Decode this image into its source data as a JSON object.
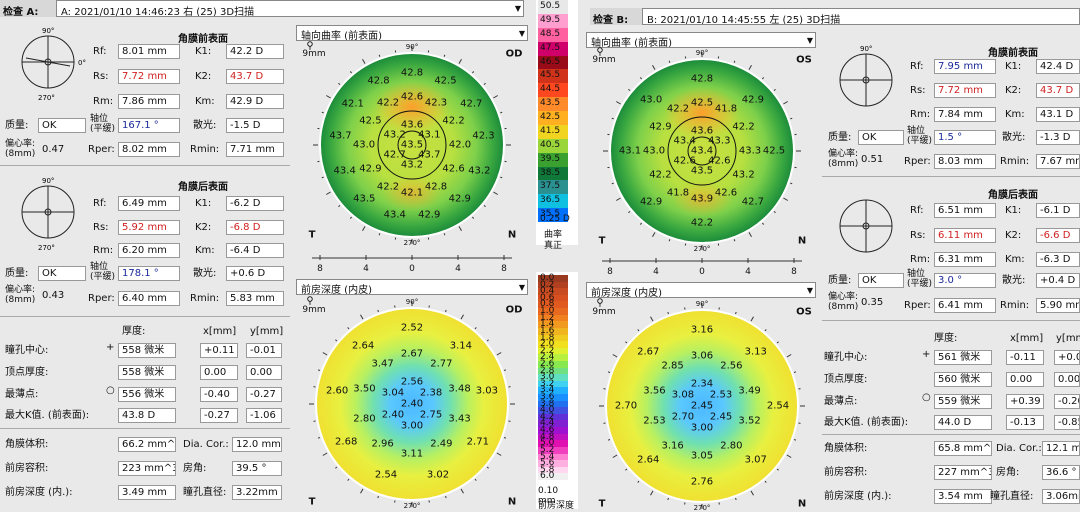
{
  "left": {
    "exam_label": "检查 A:",
    "exam_value": "A: 2021/01/10  14:46:23  右   (25) 3D扫描",
    "front": {
      "title": "角膜前表面",
      "rf": "8.01 mm",
      "rs": "7.72 mm",
      "rm": "7.86 mm",
      "k1": "42.2 D",
      "k2": "43.7 D",
      "km": "42.9 D",
      "quality": "OK",
      "axis": "167.1 °",
      "astig": "-1.5 D",
      "ecc": "0.47",
      "rper": "8.02 mm",
      "rmin": "7.71 mm"
    },
    "back": {
      "title": "角膜后表面",
      "rf": "6.49 mm",
      "rs": "5.92 mm",
      "rm": "6.20 mm",
      "k1": "-6.2 D",
      "k2": "-6.8 D",
      "km": "-6.4 D",
      "quality": "OK",
      "axis": "178.1 °",
      "astig": "+0.6 D",
      "ecc": "0.43",
      "rper": "6.40 mm",
      "rmin": "5.83 mm"
    },
    "pupil": {
      "thickness": "558 微米",
      "x": "+0.11",
      "y": "-0.01"
    },
    "apex": {
      "thickness": "558 微米",
      "x": "0.00",
      "y": "0.00"
    },
    "thinnest": {
      "thickness": "556 微米",
      "x": "-0.40",
      "y": "-0.27"
    },
    "kmax": {
      "value": "43.8 D",
      "x": "-0.27",
      "y": "-1.06"
    },
    "volume": "66.2 mm^3",
    "dia_cor": "12.0 mm",
    "chamber_vol": "223 mm^3",
    "angle": "39.5 °",
    "depth": "3.49 mm",
    "pupil_dia": "3.22mm",
    "map1_dropdown": "轴向曲率 (前表面)",
    "map2_dropdown": "前房深度 (内皮)",
    "eye": "OD",
    "map1_values": [
      {
        "t": "43.5"
      },
      {
        "t": "43.6"
      },
      {
        "t": "43.1"
      },
      {
        "t": "43.7"
      },
      {
        "t": "43.2"
      },
      {
        "t": "42.7"
      },
      {
        "t": "43.2"
      },
      {
        "t": "42.6"
      },
      {
        "t": "42.3"
      },
      {
        "t": "42.2"
      },
      {
        "t": "42.0"
      },
      {
        "t": "42.6"
      },
      {
        "t": "42.8"
      },
      {
        "t": "42.1"
      },
      {
        "t": "42.2"
      },
      {
        "t": "42.9"
      },
      {
        "t": "43.0"
      },
      {
        "t": "42.5"
      },
      {
        "t": "42.2"
      },
      {
        "t": "42.8"
      },
      {
        "t": "42.5"
      },
      {
        "t": "42.7"
      },
      {
        "t": "42.3"
      },
      {
        "t": "43.2"
      },
      {
        "t": "42.9"
      },
      {
        "t": "42.9"
      },
      {
        "t": "43.4"
      },
      {
        "t": "43.5"
      },
      {
        "t": "43.4"
      },
      {
        "t": "43.7"
      },
      {
        "t": "42.1"
      },
      {
        "t": "42.8"
      }
    ],
    "map2_values": [
      {
        "t": "2.40"
      },
      {
        "t": "2.56"
      },
      {
        "t": "2.38"
      },
      {
        "t": "2.75"
      },
      {
        "t": "3.00"
      },
      {
        "t": "2.40"
      },
      {
        "t": "3.04"
      },
      {
        "t": "2.67"
      },
      {
        "t": "2.77"
      },
      {
        "t": "3.48"
      },
      {
        "t": "3.43"
      },
      {
        "t": "2.49"
      },
      {
        "t": "3.11"
      },
      {
        "t": "2.96"
      },
      {
        "t": "2.80"
      },
      {
        "t": "3.50"
      },
      {
        "t": "3.47"
      },
      {
        "t": "2.52"
      },
      {
        "t": "3.14"
      },
      {
        "t": "3.03"
      },
      {
        "t": "2.71"
      },
      {
        "t": "3.02"
      },
      {
        "t": "2.54"
      },
      {
        "t": "2.68"
      },
      {
        "t": "2.60"
      },
      {
        "t": "2.64"
      }
    ]
  },
  "right": {
    "exam_label": "检查 B:",
    "exam_value": "B: 2021/01/10  14:45:55  左   (25) 3D扫描",
    "front": {
      "title": "角膜前表面",
      "rf": "7.95 mm",
      "rs": "7.72 mm",
      "rm": "7.84 mm",
      "k1": "42.4 D",
      "k2": "43.7 D",
      "km": "43.1 D",
      "quality": "OK",
      "axis": "1.5 °",
      "astig": "-1.3 D",
      "ecc": "0.51",
      "rper": "8.03 mm",
      "rmin": "7.67 mm"
    },
    "back": {
      "title": "角膜后表面",
      "rf": "6.51 mm",
      "rs": "6.11 mm",
      "rm": "6.31 mm",
      "k1": "-6.1 D",
      "k2": "-6.6 D",
      "km": "-6.3 D",
      "quality": "OK",
      "axis": "3.0 °",
      "astig": "+0.4 D",
      "ecc": "0.35",
      "rper": "6.41 mm",
      "rmin": "5.90 mm"
    },
    "pupil": {
      "thickness": "561 微米",
      "x": "-0.11",
      "y": "+0.09"
    },
    "apex": {
      "thickness": "560 微米",
      "x": "0.00",
      "y": "0.00"
    },
    "thinnest": {
      "thickness": "559 微米",
      "x": "+0.39",
      "y": "-0.20"
    },
    "kmax": {
      "value": "44.0 D",
      "x": "-0.13",
      "y": "-0.85"
    },
    "volume": "65.8 mm^3",
    "dia_cor": "12.1 mm",
    "chamber_vol": "227 mm^3",
    "angle": "36.6 °",
    "depth": "3.54 mm",
    "pupil_dia": "3.06mm",
    "map1_dropdown": "轴向曲率 (前表面)",
    "map2_dropdown": "前房深度 (内皮)",
    "eye": "OS",
    "map1_values": [
      {
        "t": "43.4"
      },
      {
        "t": "43.6"
      },
      {
        "t": "43.3"
      },
      {
        "t": "42.6"
      },
      {
        "t": "43.5"
      },
      {
        "t": "42.6"
      },
      {
        "t": "43.4"
      },
      {
        "t": "42.5"
      },
      {
        "t": "41.8"
      },
      {
        "t": "42.2"
      },
      {
        "t": "43.3"
      },
      {
        "t": "43.2"
      },
      {
        "t": "42.6"
      },
      {
        "t": "43.9"
      },
      {
        "t": "41.8"
      },
      {
        "t": "42.2"
      },
      {
        "t": "43.0"
      },
      {
        "t": "42.9"
      },
      {
        "t": "42.2"
      },
      {
        "t": "42.8"
      },
      {
        "t": "42.9"
      },
      {
        "t": "42.5"
      },
      {
        "t": "42.7"
      },
      {
        "t": "42.2"
      },
      {
        "t": "42.9"
      },
      {
        "t": "43.1"
      },
      {
        "t": "43.0"
      }
    ],
    "map2_values": [
      {
        "t": "2.45"
      },
      {
        "t": "2.34"
      },
      {
        "t": "2.53"
      },
      {
        "t": "2.45"
      },
      {
        "t": "3.00"
      },
      {
        "t": "2.70"
      },
      {
        "t": "3.08"
      },
      {
        "t": "3.06"
      },
      {
        "t": "2.56"
      },
      {
        "t": "3.49"
      },
      {
        "t": "3.52"
      },
      {
        "t": "2.80"
      },
      {
        "t": "3.05"
      },
      {
        "t": "3.16"
      },
      {
        "t": "2.53"
      },
      {
        "t": "3.56"
      },
      {
        "t": "2.85"
      },
      {
        "t": "3.16"
      },
      {
        "t": "3.13"
      },
      {
        "t": "2.54"
      },
      {
        "t": "3.07"
      },
      {
        "t": "2.76"
      },
      {
        "t": "2.64"
      },
      {
        "t": "2.70"
      },
      {
        "t": "2.67"
      }
    ]
  },
  "labels": {
    "rf": "Rf:",
    "rs": "Rs:",
    "rm": "Rm:",
    "k1": "K1:",
    "k2": "K2:",
    "km": "Km:",
    "quality": "质量:",
    "axis": "轴位\n(平缓)",
    "astig": "散光:",
    "ecc": "偏心率:\n(8mm)",
    "rper": "Rper:",
    "rmin": "Rmin:",
    "thickness_hdr": "厚度:",
    "x_hdr": "x[mm]",
    "y_hdr": "y[mm]",
    "pupil_center": "瞳孔中心:",
    "apex_thick": "顶点厚度:",
    "thinnest": "最薄点:",
    "kmax": "最大K值. (前表面):",
    "volume": "角膜体积:",
    "dia_cor": "Dia. Cor.:",
    "chamber_vol": "前房容积:",
    "angle": "房角:",
    "depth": "前房深度 (内.):",
    "pupil_dia": "瞳孔直径:",
    "mm9": "9mm",
    "deg90": "90°",
    "deg270": "270°",
    "deg180": "180°",
    "deg0": "0°",
    "T": "T",
    "N": "N"
  },
  "scale1": {
    "steps": [
      "50.5",
      "49.5",
      "48.5",
      "47.5",
      "46.5",
      "45.5",
      "44.5",
      "43.5",
      "42.5",
      "41.5",
      "40.5",
      "39.5",
      "38.5",
      "37.5",
      "36.5",
      "35.5"
    ],
    "colors": [
      "#e8e8e8",
      "#ff9fd0",
      "#ff60a0",
      "#d0006a",
      "#9a0b1a",
      "#d0321a",
      "#ff4820",
      "#ff8a2a",
      "#ffb020",
      "#f0d420",
      "#9ad63a",
      "#3aa030",
      "#107838",
      "#2b9090",
      "#10c0e0",
      "#0070ff"
    ],
    "step_label": "0.25 D",
    "mode1": "曲率",
    "mode2": "真正"
  },
  "scale2": {
    "steps": [
      "0.0",
      "0.2",
      "0.4",
      "0.6",
      "0.8",
      "1.0",
      "1.2",
      "1.4",
      "1.6",
      "1.8",
      "2.0",
      "2.2",
      "2.4",
      "2.6",
      "2.8",
      "3.0",
      "3.2",
      "3.4",
      "3.6",
      "3.8",
      "4.0",
      "4.2",
      "4.4",
      "4.6",
      "4.8",
      "5.0",
      "5.2",
      "5.4",
      "5.6",
      "5.8",
      "6.0"
    ],
    "colors": [
      "#9a3a20",
      "#b04020",
      "#c84a20",
      "#d85020",
      "#e05a20",
      "#e86a20",
      "#f08020",
      "#f09a20",
      "#f0b420",
      "#f0cc20",
      "#f0e020",
      "#e0f030",
      "#b8f040",
      "#88e850",
      "#70e080",
      "#60e0c0",
      "#40d0f0",
      "#20b0ff",
      "#1890ff",
      "#2070f0",
      "#4050e0",
      "#6030d8",
      "#8020d0",
      "#a010d0",
      "#c010c0",
      "#e010b0",
      "#f040c0",
      "#ff80d0",
      "#ffb0e0",
      "#ffd8f0",
      "#f0f0f0"
    ],
    "step_label": "0.10 mm",
    "mode1": "前房深度",
    "mode2": ""
  }
}
